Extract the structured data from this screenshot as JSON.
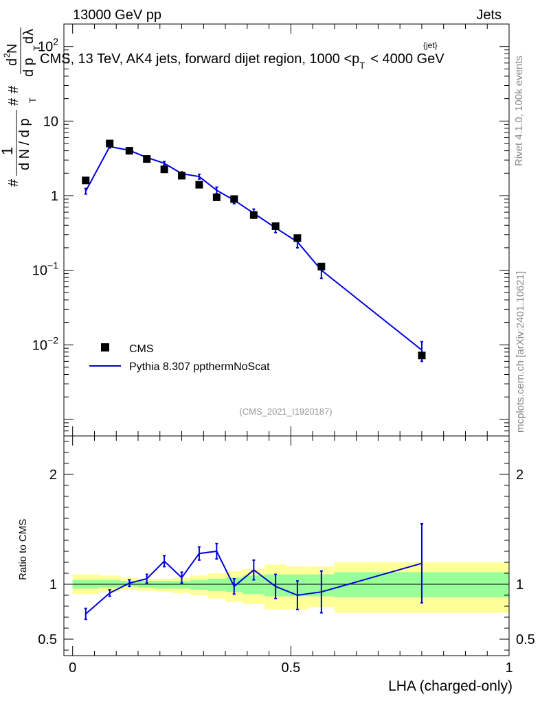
{
  "header": {
    "left": "13000 GeV pp",
    "right": "Jets",
    "side_rivet": "Rivet 4.1.0,  100k events",
    "side_mcplots": "mcplots.cern.ch [arXiv:2401.10621]"
  },
  "chart_data": [
    {
      "type": "scatter",
      "panel": "main",
      "title": "CMS, 13 TeV, AK4 jets, forward dijet region, 1000 <p",
      "title_sup": "{jet}",
      "title_sub": "T",
      "title_tail": "< 4000 GeV",
      "ylabel": "1/N dN/dp_T · d²N/(dp_T dλ)",
      "ylabel_parts": {
        "hash1": "#",
        "one": "1",
        "hash2": "#",
        "hash3": "#",
        "dN": "d N / d p",
        "dp": "d p",
        "d2N": "d",
        "d2N_sup": "2",
        "d2N_N": "N",
        "dlambda": "d",
        "lambda": "λ",
        "T": "T"
      },
      "yscale": "log",
      "ylim": [
        0.0006,
        200
      ],
      "xlim": [
        -0.02,
        1.0
      ],
      "y_ticks": [
        {
          "value": 0.01,
          "base": "10",
          "exp": "−2"
        },
        {
          "value": 0.1,
          "base": "10",
          "exp": "−1"
        },
        {
          "value": 1,
          "label": "1"
        },
        {
          "value": 10,
          "label": "10"
        },
        {
          "value": 100,
          "base": "10",
          "exp": "2"
        }
      ],
      "watermark": "(CMS_2021_I1920187)",
      "legend": [
        {
          "name": "CMS",
          "marker": "square"
        },
        {
          "name": "Pythia 8.307 ppthermNoScat",
          "marker": "line"
        }
      ],
      "series": [
        {
          "name": "CMS",
          "color": "#000000",
          "x": [
            0.03,
            0.085,
            0.13,
            0.17,
            0.21,
            0.25,
            0.29,
            0.33,
            0.37,
            0.415,
            0.465,
            0.515,
            0.57,
            0.8
          ],
          "y": [
            1.6,
            5.0,
            4.0,
            3.1,
            2.25,
            1.85,
            1.4,
            0.95,
            0.9,
            0.55,
            0.39,
            0.27,
            0.112,
            0.0072
          ]
        },
        {
          "name": "Pythia 8.307 ppthermNoScat",
          "color": "#0000dd",
          "x": [
            0.03,
            0.085,
            0.13,
            0.17,
            0.21,
            0.25,
            0.29,
            0.33,
            0.37,
            0.415,
            0.465,
            0.515,
            0.57,
            0.8
          ],
          "y": [
            1.15,
            4.55,
            4.05,
            3.25,
            2.72,
            1.97,
            1.8,
            1.18,
            0.87,
            0.58,
            0.37,
            0.24,
            0.1,
            0.0085
          ],
          "err": [
            0.1,
            0.2,
            0.15,
            0.15,
            0.15,
            0.12,
            0.13,
            0.12,
            0.09,
            0.08,
            0.05,
            0.04,
            0.022,
            0.0025
          ]
        }
      ]
    },
    {
      "type": "line",
      "panel": "ratio",
      "ylabel": "Ratio to CMS",
      "xlabel": "LHA (charged-only)",
      "ylim": [
        0.35,
        2.35
      ],
      "xlim": [
        -0.02,
        1.0
      ],
      "y_ticks": [
        {
          "value": 0.5,
          "label": "0.5"
        },
        {
          "value": 1,
          "label": "1"
        },
        {
          "value": 2,
          "label": "2"
        }
      ],
      "x_ticks": [
        {
          "value": 0,
          "label": "0"
        },
        {
          "value": 0.5,
          "label": "0.5"
        },
        {
          "value": 1,
          "label": "1"
        }
      ],
      "reference": 1.0,
      "bands": {
        "edges": [
          0.0,
          0.06,
          0.11,
          0.15,
          0.19,
          0.23,
          0.27,
          0.31,
          0.35,
          0.39,
          0.44,
          0.49,
          0.54,
          0.6,
          1.0
        ],
        "yellow": [
          [
            0.91,
            1.09
          ],
          [
            0.93,
            1.08
          ],
          [
            0.95,
            1.06
          ],
          [
            0.94,
            1.05
          ],
          [
            0.93,
            1.05
          ],
          [
            0.92,
            1.06
          ],
          [
            0.9,
            1.08
          ],
          [
            0.87,
            1.1
          ],
          [
            0.84,
            1.12
          ],
          [
            0.82,
            1.14
          ],
          [
            0.77,
            1.18
          ],
          [
            0.77,
            1.16
          ],
          [
            0.79,
            1.16
          ],
          [
            0.74,
            1.2
          ]
        ],
        "green": [
          [
            0.96,
            1.04
          ],
          [
            0.97,
            1.04
          ],
          [
            0.98,
            1.03
          ],
          [
            0.97,
            1.03
          ],
          [
            0.96,
            1.03
          ],
          [
            0.96,
            1.03
          ],
          [
            0.95,
            1.04
          ],
          [
            0.94,
            1.05
          ],
          [
            0.93,
            1.06
          ],
          [
            0.91,
            1.08
          ],
          [
            0.89,
            1.09
          ],
          [
            0.89,
            1.09
          ],
          [
            0.89,
            1.09
          ],
          [
            0.88,
            1.11
          ]
        ]
      },
      "series": [
        {
          "name": "Pythia 8.307 ppthermNoScat / CMS",
          "color": "#0000dd",
          "x": [
            0.03,
            0.085,
            0.13,
            0.17,
            0.21,
            0.25,
            0.29,
            0.33,
            0.37,
            0.415,
            0.465,
            0.515,
            0.57,
            0.8
          ],
          "y": [
            0.73,
            0.92,
            1.01,
            1.05,
            1.21,
            1.06,
            1.28,
            1.3,
            0.98,
            1.13,
            0.98,
            0.9,
            0.93,
            1.19
          ],
          "err": [
            0.05,
            0.03,
            0.03,
            0.04,
            0.05,
            0.05,
            0.06,
            0.07,
            0.07,
            0.09,
            0.11,
            0.13,
            0.19,
            0.36
          ]
        }
      ]
    }
  ],
  "colors": {
    "yellow_band": "#ffff99",
    "green_band": "#99ff99",
    "mc": "#0000dd",
    "data": "#000000",
    "grey_text": "#888888"
  }
}
